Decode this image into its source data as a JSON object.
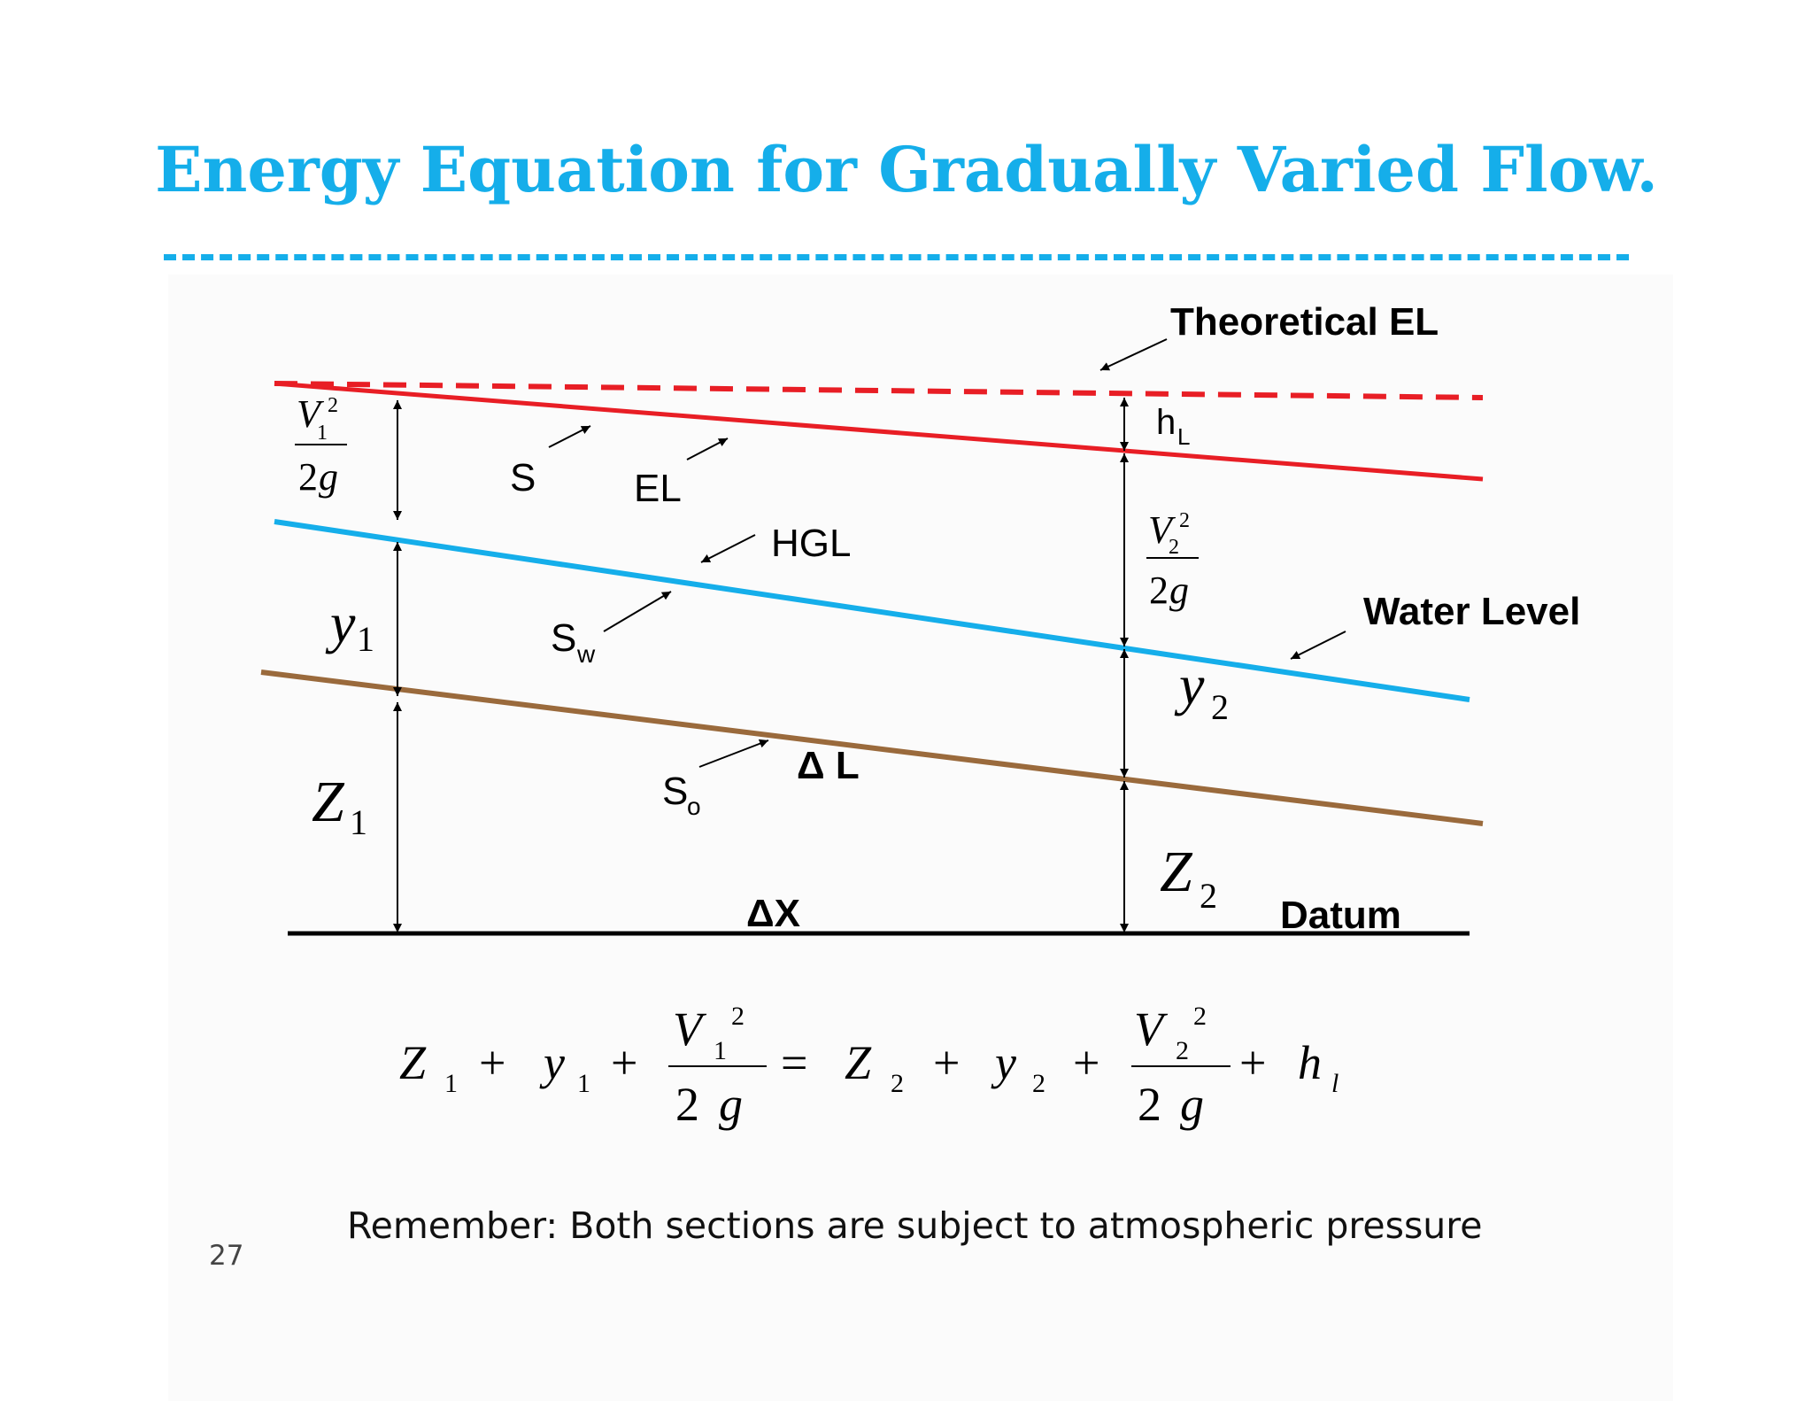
{
  "title": "Energy Equation for Gradually Varied Flow.",
  "labels": {
    "theoretical_el": "Theoretical EL",
    "head_loss_base": "h",
    "head_loss_sub": "L",
    "energy_slope": "S",
    "energy_line": "EL",
    "hgl": "HGL",
    "water_slope_base": "S",
    "water_slope_sub": "w",
    "water_level": "Water Level",
    "delta_l": "Δ L",
    "bed_slope_base": "S",
    "bed_slope_sub": "o",
    "delta_x": "ΔX",
    "datum": "Datum"
  },
  "section1": {
    "velocity_head_num": "V",
    "velocity_head_sub": "1",
    "velocity_head_sup": "2",
    "velocity_head_den_coef": "2",
    "velocity_head_den_var": "g",
    "depth_base": "y",
    "depth_sub": "1",
    "elevation_base": "Z",
    "elevation_sub": "1"
  },
  "section2": {
    "velocity_head_num": "V",
    "velocity_head_sub": "2",
    "velocity_head_sup": "2",
    "velocity_head_den_coef": "2",
    "velocity_head_den_var": "g",
    "depth_base": "y",
    "depth_sub": "2",
    "elevation_base": "Z",
    "elevation_sub": "2"
  },
  "equation": {
    "z": "Z",
    "y": "y",
    "v": "V",
    "g": "g",
    "h": "h",
    "one": "1",
    "two": "2",
    "l_sub": "l",
    "plus": "+",
    "equals": "="
  },
  "note": "Remember:  Both sections are subject to atmospheric pressure",
  "page_number": "27",
  "colors": {
    "title": "#15aeea",
    "energy_line": "#e81e25",
    "water_line": "#15aeea",
    "bed_line": "#9a6a3c",
    "datum": "#000000"
  }
}
